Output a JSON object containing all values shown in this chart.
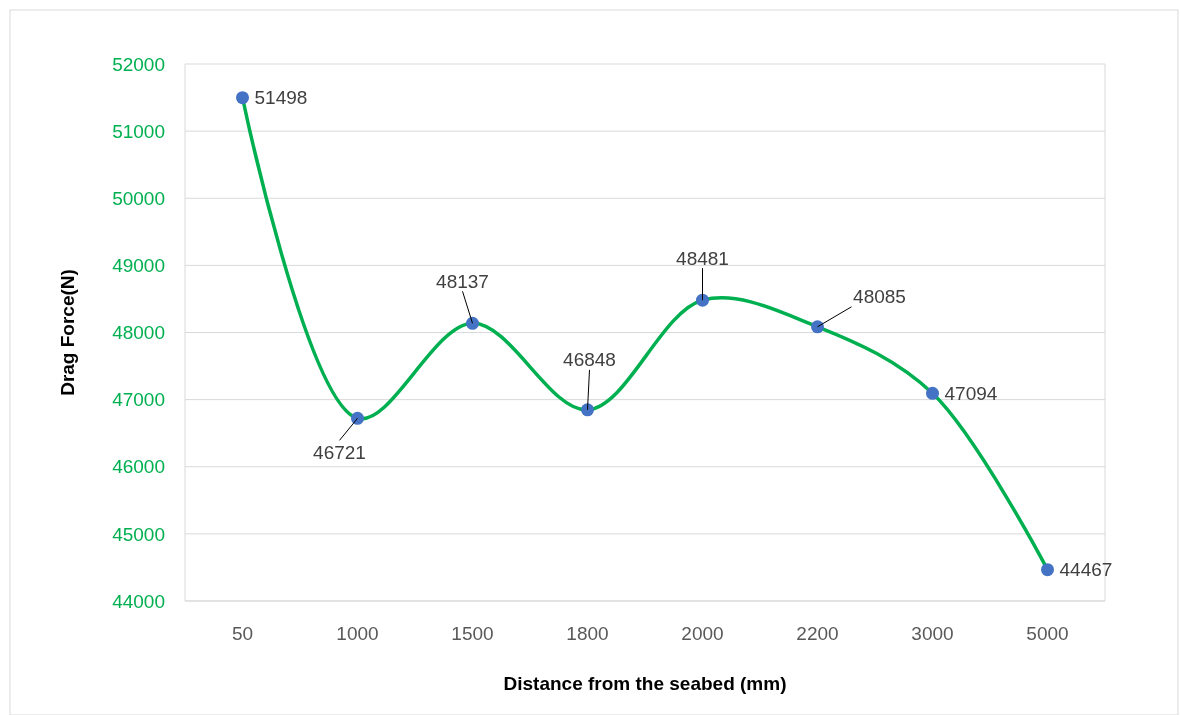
{
  "chart_data": {
    "type": "line",
    "xlabel": "Distance from the seabed (mm)",
    "ylabel": "Drag Force(N)",
    "categories": [
      "50",
      "1000",
      "1500",
      "1800",
      "2000",
      "2200",
      "3000",
      "5000"
    ],
    "series": [
      {
        "color": "#00b050",
        "colors": [
          "#4472c4",
          "#4472c4",
          "#4472c4",
          "#4472c4",
          "#4472c4",
          "#4472c4",
          "#4472c4",
          "#4472c4"
        ],
        "values": [
          51498,
          46721,
          48137,
          46848,
          48481,
          48085,
          47094,
          44467
        ]
      }
    ],
    "ylim": [
      44000,
      52000
    ],
    "yticks": [
      44000,
      45000,
      46000,
      47000,
      48000,
      49000,
      50000,
      51000,
      52000
    ],
    "grid": "y",
    "marker": "circle",
    "line_style": "solid",
    "data_labels": true
  }
}
